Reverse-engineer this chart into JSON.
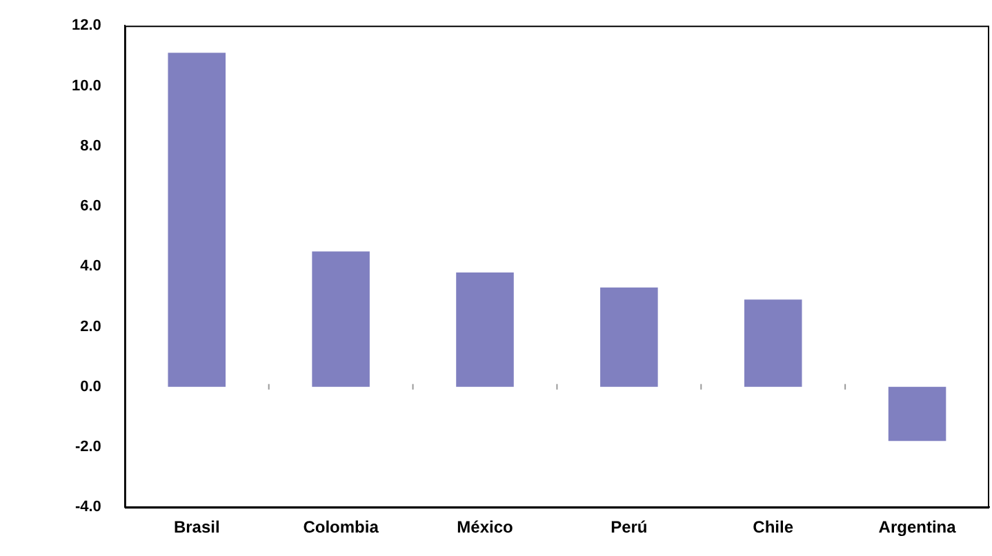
{
  "chart_data": {
    "type": "bar",
    "categories": [
      "Brasil",
      "Colombia",
      "México",
      "Perú",
      "Chile",
      "Argentina"
    ],
    "values": [
      11.1,
      4.5,
      3.8,
      3.3,
      2.9,
      -1.8
    ],
    "color": "#8080c0",
    "ylim": [
      -4,
      12
    ],
    "yticks": [
      {
        "value": -4,
        "label": "-4.0"
      },
      {
        "value": -2,
        "label": "-2.0"
      },
      {
        "value": 0,
        "label": "0.0"
      },
      {
        "value": 2,
        "label": "2.0"
      },
      {
        "value": 4,
        "label": "4.0"
      },
      {
        "value": 6,
        "label": "6.0"
      },
      {
        "value": 8,
        "label": "8.0"
      },
      {
        "value": 10,
        "label": "10.0"
      },
      {
        "value": 12,
        "label": "12.0"
      }
    ],
    "grid": false,
    "legend": false
  }
}
